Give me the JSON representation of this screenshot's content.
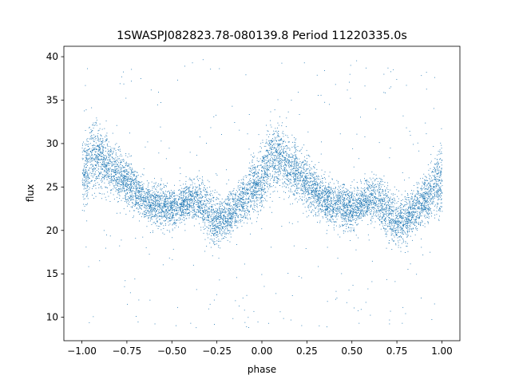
{
  "chart_data": {
    "type": "scatter",
    "title": "1SWASPJ082823.78-080139.8 Period 11220335.0s",
    "xlabel": "phase",
    "ylabel": "flux",
    "xlim": [
      -1.1,
      1.1
    ],
    "ylim": [
      7.3,
      41.2
    ],
    "x_ticks": [
      -1.0,
      -0.75,
      -0.5,
      -0.25,
      0.0,
      0.25,
      0.5,
      0.75,
      1.0
    ],
    "x_tick_labels": [
      "−1.00",
      "−0.75",
      "−0.50",
      "−0.25",
      "0.00",
      "0.25",
      "0.50",
      "0.75",
      "1.00"
    ],
    "y_ticks": [
      10,
      15,
      20,
      25,
      30,
      35,
      40
    ],
    "y_tick_labels": [
      "10",
      "15",
      "20",
      "25",
      "30",
      "35",
      "40"
    ],
    "grid": false,
    "legend": "none",
    "marker_color": "#1f77b4",
    "phase_range": [
      -1.0,
      1.0
    ],
    "approx_point_count": 9000,
    "trend": [
      {
        "phase": 0.0,
        "flux": 26.0,
        "spread": 3.5
      },
      {
        "phase": 0.05,
        "flux": 28.5,
        "spread": 3.5
      },
      {
        "phase": 0.1,
        "flux": 28.3,
        "spread": 3.2
      },
      {
        "phase": 0.15,
        "flux": 27.5,
        "spread": 3.0
      },
      {
        "phase": 0.2,
        "flux": 26.5,
        "spread": 2.8
      },
      {
        "phase": 0.25,
        "flux": 25.5,
        "spread": 2.5
      },
      {
        "phase": 0.3,
        "flux": 24.5,
        "spread": 2.5
      },
      {
        "phase": 0.35,
        "flux": 23.5,
        "spread": 2.2
      },
      {
        "phase": 0.4,
        "flux": 23.0,
        "spread": 2.2
      },
      {
        "phase": 0.45,
        "flux": 22.8,
        "spread": 2.2
      },
      {
        "phase": 0.5,
        "flux": 22.5,
        "spread": 2.0
      },
      {
        "phase": 0.55,
        "flux": 23.0,
        "spread": 2.0
      },
      {
        "phase": 0.6,
        "flux": 23.6,
        "spread": 2.0
      },
      {
        "phase": 0.65,
        "flux": 23.5,
        "spread": 2.2
      },
      {
        "phase": 0.7,
        "flux": 22.0,
        "spread": 2.8
      },
      {
        "phase": 0.75,
        "flux": 21.0,
        "spread": 2.5
      },
      {
        "phase": 0.8,
        "flux": 21.5,
        "spread": 2.2
      },
      {
        "phase": 0.85,
        "flux": 22.5,
        "spread": 2.2
      },
      {
        "phase": 0.9,
        "flux": 23.5,
        "spread": 2.5
      },
      {
        "phase": 0.95,
        "flux": 25.0,
        "spread": 3.0
      },
      {
        "phase": 1.0,
        "flux": 26.0,
        "spread": 3.5
      }
    ]
  }
}
